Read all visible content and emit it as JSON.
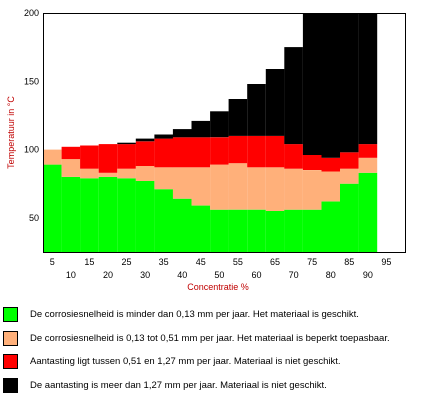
{
  "chart_data": {
    "type": "bar",
    "stacked": true,
    "xlabel": "Concentratie %",
    "ylabel": "Temperatuur in °C",
    "ylim": [
      25,
      200
    ],
    "yticks": [
      50,
      100,
      150,
      200
    ],
    "xticks": [
      5,
      10,
      15,
      20,
      25,
      30,
      35,
      40,
      45,
      50,
      55,
      60,
      65,
      70,
      75,
      80,
      85,
      90,
      95
    ],
    "categories": [
      5,
      10,
      15,
      20,
      25,
      30,
      35,
      40,
      45,
      50,
      55,
      60,
      65,
      70,
      75,
      80,
      85,
      90
    ],
    "grid": false,
    "legend_position": "bottom",
    "series": [
      {
        "name": "De corrosiesnelheid is minder dan 0,13 mm per jaar. Het materiaal is geschikt.",
        "color": "#00ff00",
        "top": [
          89,
          80,
          79,
          80,
          79,
          77,
          71,
          64,
          59,
          56,
          56,
          56,
          55,
          56,
          56,
          62,
          75,
          83
        ]
      },
      {
        "name": "De corrosiesnelheid is 0,13 tot 0,51 mm per jaar. Het materiaal is beperkt toepasbaar.",
        "color": "#ffb07a",
        "top": [
          100,
          93,
          86,
          83,
          86,
          88,
          87,
          87,
          87,
          89,
          90,
          87,
          87,
          86,
          85,
          84,
          86,
          94
        ]
      },
      {
        "name": "Aantasting ligt tussen 0,51 en 1,27 mm per jaar. Materiaal is niet geschikt.",
        "color": "#ff0000",
        "top": [
          100,
          102,
          103,
          104,
          104,
          106,
          108,
          109,
          109,
          109,
          110,
          110,
          110,
          104,
          96,
          94,
          98,
          104
        ]
      },
      {
        "name": "De aantasting is meer dan 1,27 mm per jaar. Materiaal is niet geschikt.",
        "color": "#000000",
        "top": [
          100,
          102,
          103,
          104,
          105,
          108,
          111,
          115,
          121,
          128,
          137,
          148,
          159,
          175,
          200,
          200,
          200,
          200
        ]
      }
    ]
  }
}
